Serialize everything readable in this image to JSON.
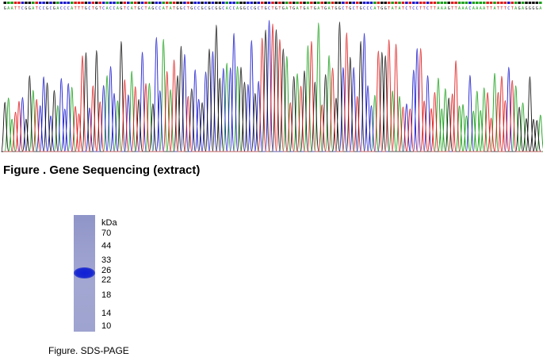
{
  "sequencing": {
    "caption": "Figure . Gene Sequencing (extract)",
    "sequence": "GAATTCGGATCCGCGACCCATTTGCTGTCACCAGTCATGCTAGCCATATGGCTGCCGCGCGGCACCAGGCCGCTGCTGTGATGATGATGATGATGGCTGCTGCCCATGGTATATCTCCTTCTTAAAGTTAAACAAAATTATTTCTAGAGGGGA",
    "colors": {
      "A": "#1aa01a",
      "C": "#1a1ad0",
      "G": "#111111",
      "T": "#e01a1a"
    }
  },
  "sds_page": {
    "caption": "Figure. SDS-PAGE",
    "unit": "kDa",
    "markers": [
      "70",
      "44",
      "33",
      "26",
      "22",
      "18",
      "14",
      "10"
    ],
    "lane_color": "#9aa0cf",
    "band_color": "#1a28d4"
  }
}
